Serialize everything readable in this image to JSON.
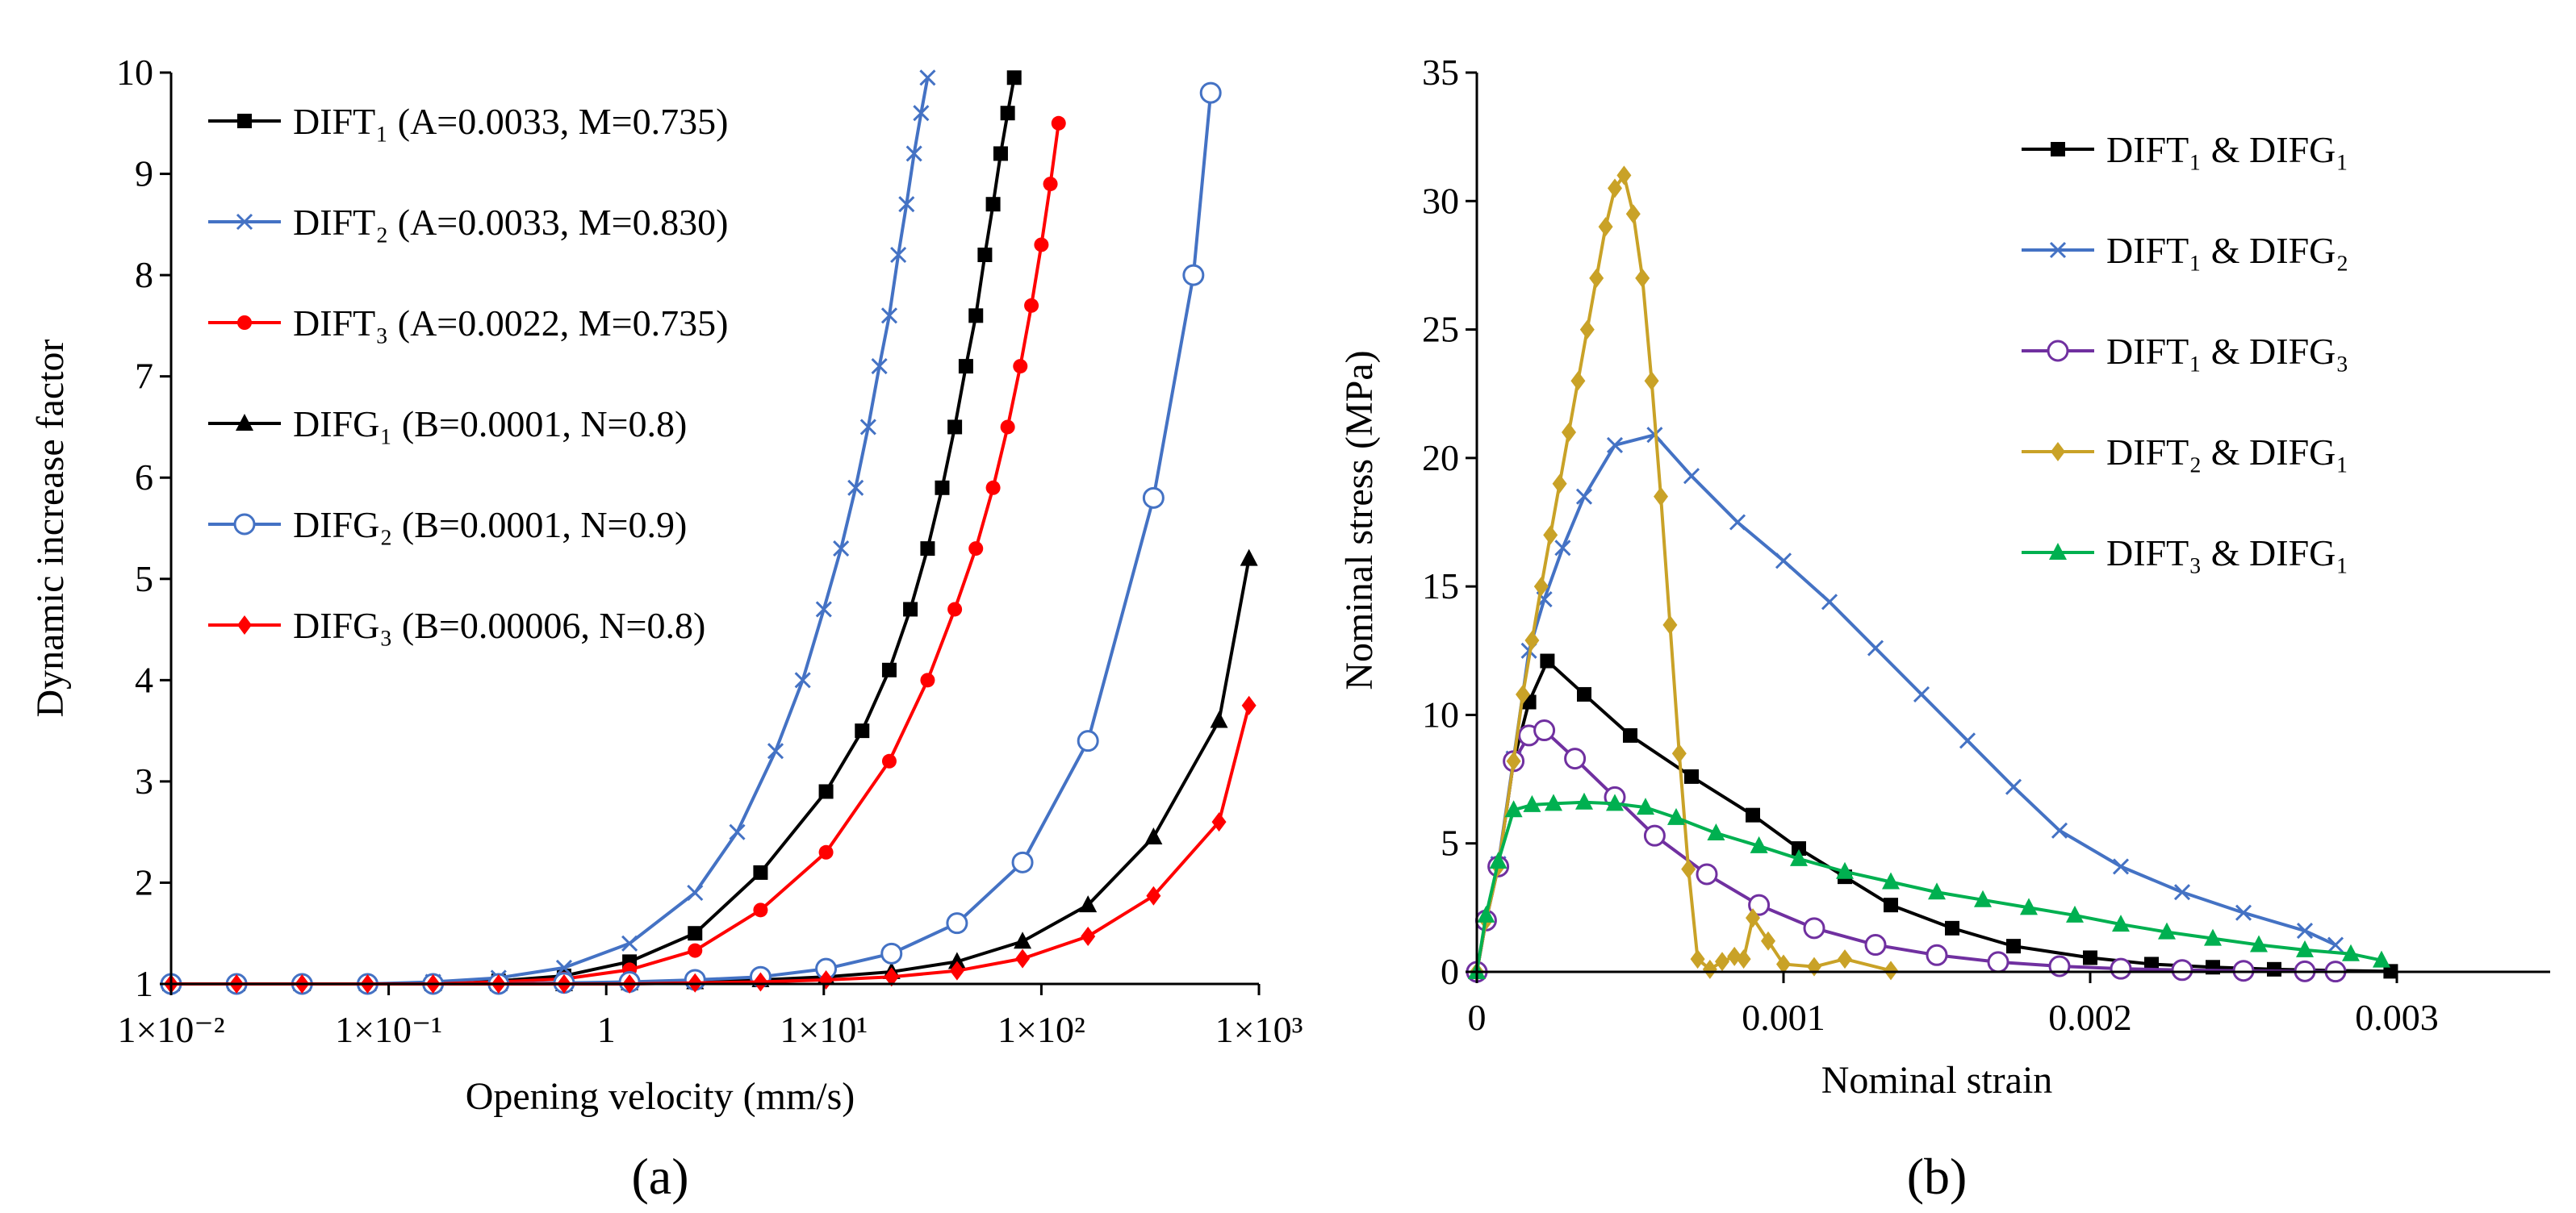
{
  "panels": [
    {
      "letter": "(a)",
      "xlabel": "Opening velocity (mm/s)",
      "ylabel": "Dynamic increase factor"
    },
    {
      "letter": "(b)",
      "xlabel": "Nominal strain",
      "ylabel": "Nominal stress (MPa)"
    }
  ],
  "chart_data": [
    {
      "type": "line",
      "title": "",
      "xlabel": "Opening velocity (mm/s)",
      "ylabel": "Dynamic increase factor",
      "xscale": "log",
      "xlim": [
        0.01,
        1000
      ],
      "ylim": [
        1,
        10
      ],
      "grid": false,
      "legend_position": "top-left",
      "x_tick_labels": [
        "1×10⁻²",
        "1×10⁻¹",
        "1",
        "1×10¹",
        "1×10²",
        "1×10³"
      ],
      "y_tick_labels": [
        "1",
        "2",
        "3",
        "4",
        "5",
        "6",
        "7",
        "8",
        "9",
        "10"
      ],
      "series": [
        {
          "name": "DIFT₁ (A=0.0033,  M=0.735)",
          "color": "#000000",
          "marker": "square",
          "x": [
            0.01,
            0.02,
            0.04,
            0.08,
            0.16,
            0.32,
            0.64,
            1.28,
            2.56,
            5.12,
            10.24,
            15,
            20,
            25,
            30,
            35,
            40,
            45,
            50,
            55,
            60,
            65,
            70,
            75
          ],
          "y": [
            1.0,
            1.0,
            1.0,
            1.0,
            1.01,
            1.03,
            1.08,
            1.22,
            1.5,
            2.1,
            2.9,
            3.5,
            4.1,
            4.7,
            5.3,
            5.9,
            6.5,
            7.1,
            7.6,
            8.2,
            8.7,
            9.2,
            9.6,
            9.95
          ]
        },
        {
          "name": "DIFT₂ (A=0.0033,  M=0.830)",
          "color": "#4472C4",
          "marker": "x",
          "x": [
            0.01,
            0.02,
            0.04,
            0.08,
            0.16,
            0.32,
            0.64,
            1.28,
            2.56,
            4,
            6,
            8,
            10,
            12,
            14,
            16,
            18,
            20,
            22,
            24,
            26,
            28,
            30
          ],
          "y": [
            1.0,
            1.0,
            1.0,
            1.0,
            1.02,
            1.06,
            1.16,
            1.4,
            1.9,
            2.5,
            3.3,
            4.0,
            4.7,
            5.3,
            5.9,
            6.5,
            7.1,
            7.6,
            8.2,
            8.7,
            9.2,
            9.6,
            9.95
          ]
        },
        {
          "name": "DIFT₃ (A=0.0022,  M=0.735)",
          "color": "#FF0000",
          "marker": "circle-filled",
          "x": [
            0.01,
            0.02,
            0.04,
            0.08,
            0.16,
            0.32,
            0.64,
            1.28,
            2.56,
            5.12,
            10.24,
            20,
            30,
            40,
            50,
            60,
            70,
            80,
            90,
            100,
            110,
            120
          ],
          "y": [
            1.0,
            1.0,
            1.0,
            1.0,
            1.0,
            1.02,
            1.05,
            1.14,
            1.33,
            1.73,
            2.3,
            3.2,
            4.0,
            4.7,
            5.3,
            5.9,
            6.5,
            7.1,
            7.7,
            8.3,
            8.9,
            9.5
          ]
        },
        {
          "name": "DIFG₁ (B=0.0001,  N=0.8)",
          "color": "#000000",
          "marker": "triangle",
          "x": [
            0.01,
            0.02,
            0.04,
            0.08,
            0.16,
            0.32,
            0.64,
            1.28,
            2.56,
            5.12,
            10.24,
            20.48,
            40.96,
            81.92,
            163.8,
            327.7,
            655.4,
            900
          ],
          "y": [
            1.0,
            1.0,
            1.0,
            1.0,
            1.0,
            1.0,
            1.0,
            1.01,
            1.02,
            1.04,
            1.07,
            1.12,
            1.22,
            1.42,
            1.78,
            2.45,
            3.6,
            5.2
          ]
        },
        {
          "name": "DIFG₂ (B=0.0001,  N=0.9)",
          "color": "#4472C4",
          "marker": "circle-open",
          "x": [
            0.01,
            0.02,
            0.04,
            0.08,
            0.16,
            0.32,
            0.64,
            1.28,
            2.56,
            5.12,
            10.24,
            20.48,
            40.96,
            81.92,
            163.8,
            327.7,
            500,
            600
          ],
          "y": [
            1.0,
            1.0,
            1.0,
            1.0,
            1.0,
            1.0,
            1.01,
            1.02,
            1.04,
            1.07,
            1.15,
            1.3,
            1.6,
            2.2,
            3.4,
            5.8,
            8.0,
            9.8
          ]
        },
        {
          "name": "DIFG₃ (B=0.00006,  N=0.8)",
          "color": "#FF0000",
          "marker": "diamond",
          "x": [
            0.01,
            0.02,
            0.04,
            0.08,
            0.16,
            0.32,
            0.64,
            1.28,
            2.56,
            5.12,
            10.24,
            20.48,
            40.96,
            81.92,
            163.8,
            327.7,
            655.4,
            900
          ],
          "y": [
            1.0,
            1.0,
            1.0,
            1.0,
            1.0,
            1.0,
            1.0,
            1.0,
            1.01,
            1.02,
            1.04,
            1.07,
            1.13,
            1.25,
            1.47,
            1.87,
            2.6,
            3.75
          ]
        }
      ]
    },
    {
      "type": "line",
      "title": "",
      "xlabel": "Nominal strain",
      "ylabel": "Nominal stress (MPa)",
      "xlim": [
        0,
        0.0035
      ],
      "ylim": [
        0,
        35
      ],
      "grid": false,
      "legend_position": "top-right",
      "x_tick_labels": [
        "0",
        "0.001",
        "0.002",
        "0.003"
      ],
      "y_tick_labels": [
        "0",
        "5",
        "10",
        "15",
        "20",
        "25",
        "30",
        "35"
      ],
      "series": [
        {
          "name": "DIFT₁ & DIFG₁",
          "color": "#000000",
          "marker": "square",
          "x": [
            0,
            3e-05,
            7e-05,
            0.00012,
            0.00017,
            0.00023,
            0.00035,
            0.0005,
            0.0007,
            0.0009,
            0.00105,
            0.0012,
            0.00135,
            0.00155,
            0.00175,
            0.002,
            0.0022,
            0.0024,
            0.0026,
            0.0028,
            0.00298
          ],
          "y": [
            0,
            2,
            4.1,
            8.2,
            10.5,
            12.1,
            10.8,
            9.2,
            7.6,
            6.1,
            4.8,
            3.7,
            2.6,
            1.7,
            1.0,
            0.55,
            0.3,
            0.18,
            0.1,
            0.05,
            0.02
          ]
        },
        {
          "name": "DIFT₁ & DIFG₂",
          "color": "#4472C4",
          "marker": "x",
          "x": [
            0,
            3e-05,
            7e-05,
            0.00012,
            0.00017,
            0.00022,
            0.00028,
            0.00035,
            0.00045,
            0.00058,
            0.0007,
            0.00085,
            0.001,
            0.00115,
            0.0013,
            0.00145,
            0.0016,
            0.00175,
            0.0019,
            0.0021,
            0.0023,
            0.0025,
            0.0027,
            0.0028
          ],
          "y": [
            0,
            2,
            4.2,
            8.3,
            12.5,
            14.5,
            16.5,
            18.5,
            20.5,
            20.9,
            19.3,
            17.5,
            16.0,
            14.4,
            12.6,
            10.8,
            9.0,
            7.2,
            5.5,
            4.1,
            3.1,
            2.3,
            1.6,
            1.05
          ]
        },
        {
          "name": "DIFT₁ & DIFG₃",
          "color": "#7030A0",
          "marker": "circle-open",
          "x": [
            0,
            3e-05,
            7e-05,
            0.00012,
            0.00017,
            0.00022,
            0.00032,
            0.00045,
            0.00058,
            0.00075,
            0.00092,
            0.0011,
            0.0013,
            0.0015,
            0.0017,
            0.0019,
            0.0021,
            0.0023,
            0.0025,
            0.0027,
            0.0028
          ],
          "y": [
            0,
            2,
            4.1,
            8.2,
            9.2,
            9.4,
            8.3,
            6.8,
            5.3,
            3.8,
            2.6,
            1.7,
            1.05,
            0.65,
            0.38,
            0.22,
            0.12,
            0.07,
            0.04,
            0.02,
            0.01
          ]
        },
        {
          "name": "DIFT₂ & DIFG₁",
          "color": "#C9A227",
          "marker": "diamond",
          "x": [
            0,
            3e-05,
            7e-05,
            0.00012,
            0.00015,
            0.00018,
            0.00021,
            0.00024,
            0.00027,
            0.0003,
            0.00033,
            0.00036,
            0.00039,
            0.00042,
            0.00045,
            0.00048,
            0.00051,
            0.00054,
            0.00057,
            0.0006,
            0.00063,
            0.00066,
            0.00069,
            0.00072,
            0.00076,
            0.0008,
            0.00084,
            0.00087,
            0.0009,
            0.00095,
            0.001,
            0.0011,
            0.0012,
            0.00135
          ],
          "y": [
            0,
            2,
            4.1,
            8.2,
            10.8,
            12.9,
            15.0,
            17.0,
            19.0,
            21.0,
            23.0,
            25.0,
            27.0,
            29.0,
            30.5,
            31.0,
            29.5,
            27.0,
            23.0,
            18.5,
            13.5,
            8.5,
            4.0,
            0.5,
            0.1,
            0.4,
            0.6,
            0.5,
            2.1,
            1.2,
            0.3,
            0.2,
            0.5,
            0.05
          ]
        },
        {
          "name": "DIFT₃ & DIFG₁",
          "color": "#00B050",
          "marker": "triangle",
          "x": [
            0,
            3e-05,
            7e-05,
            0.00012,
            0.00018,
            0.00025,
            0.00035,
            0.00045,
            0.00055,
            0.00065,
            0.00078,
            0.00092,
            0.00105,
            0.0012,
            0.00135,
            0.0015,
            0.00165,
            0.0018,
            0.00195,
            0.0021,
            0.00225,
            0.0024,
            0.00255,
            0.0027,
            0.00285,
            0.00295
          ],
          "y": [
            0,
            2.2,
            4.3,
            6.3,
            6.5,
            6.55,
            6.6,
            6.55,
            6.4,
            6.0,
            5.4,
            4.9,
            4.4,
            3.9,
            3.5,
            3.1,
            2.8,
            2.5,
            2.2,
            1.85,
            1.55,
            1.3,
            1.05,
            0.85,
            0.7,
            0.45
          ]
        }
      ]
    }
  ]
}
